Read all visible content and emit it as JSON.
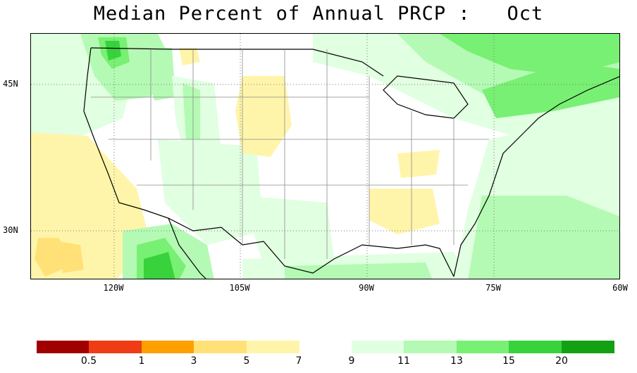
{
  "title": "Median Percent of Annual PRCP :   Oct",
  "lat_labels": [
    "45N",
    "30N"
  ],
  "lon_labels": [
    "120W",
    "105W",
    "90W",
    "75W",
    "60W"
  ],
  "legend": {
    "colors": [
      "#a00000",
      "#f03c14",
      "#ffa000",
      "#ffe178",
      "#fff5aa",
      "#e1ffe1",
      "#b4fab4",
      "#78f073",
      "#37d23c",
      "#14a014"
    ],
    "ticks": [
      "0.5",
      "1",
      "3",
      "5",
      "7",
      "9",
      "11",
      "13",
      "15",
      "20"
    ]
  }
}
